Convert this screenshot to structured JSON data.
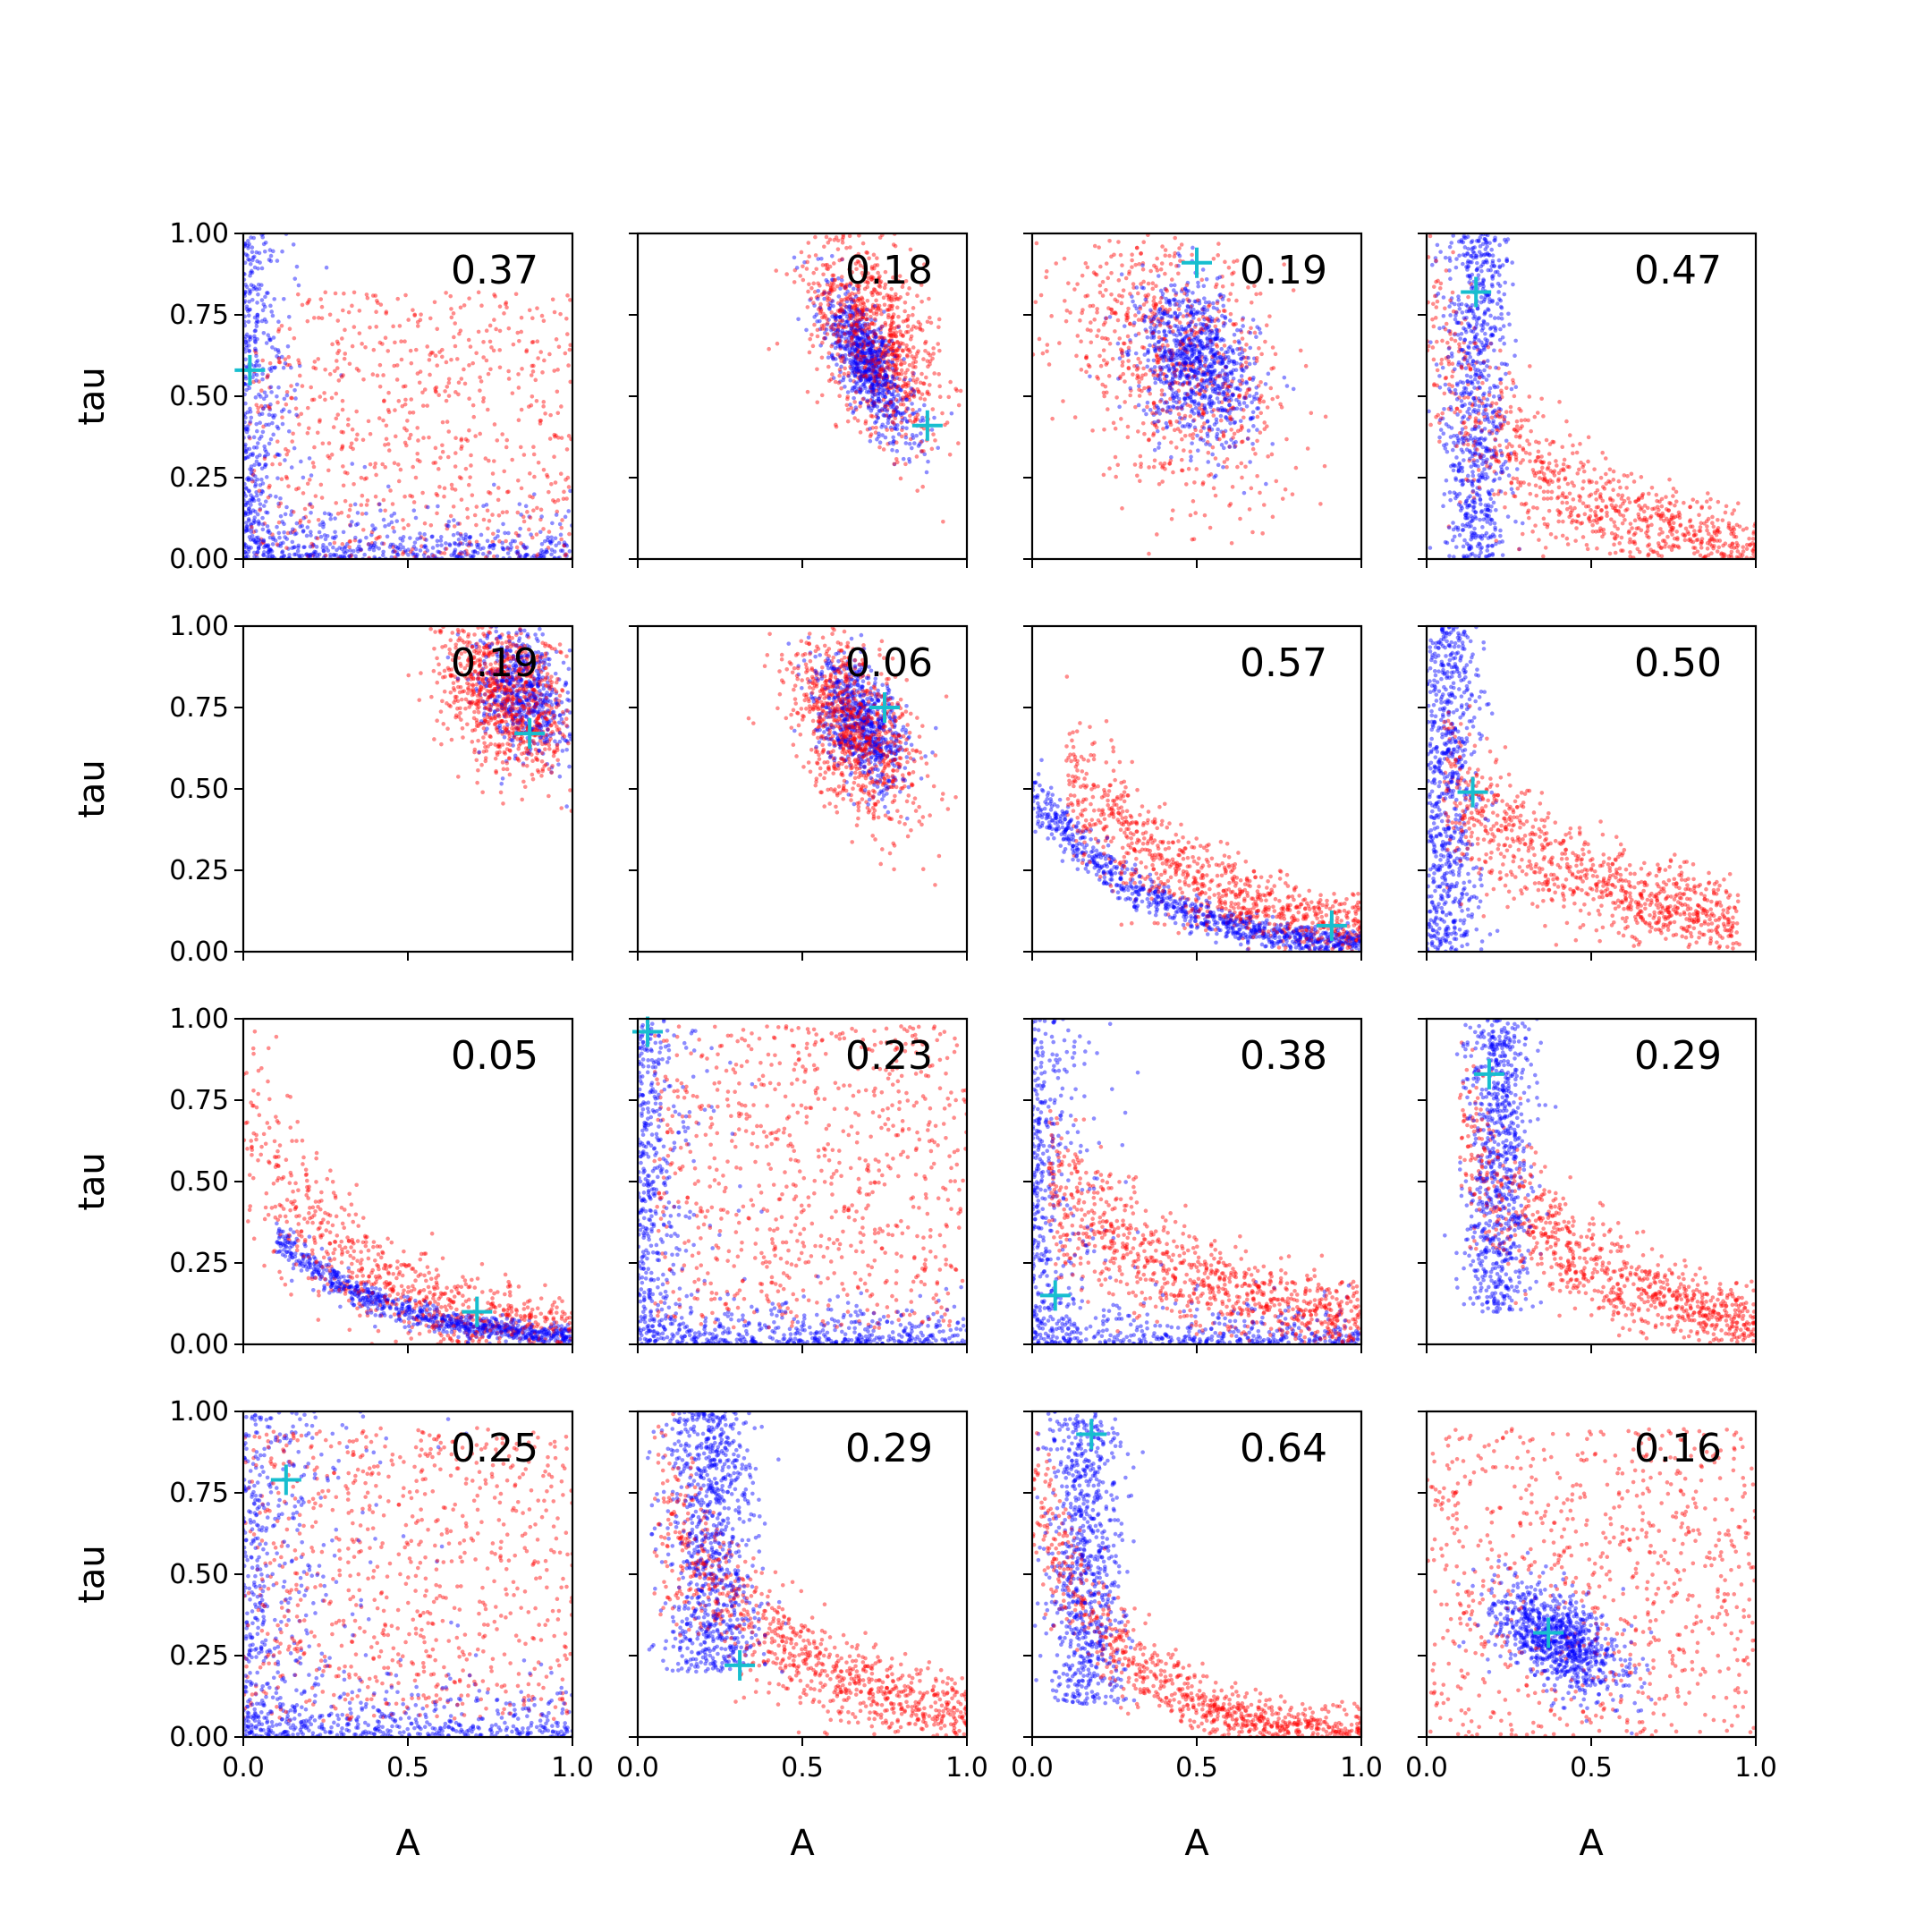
{
  "chart_data": {
    "type": "scatter",
    "layout": {
      "rows": 4,
      "cols": 4
    },
    "xlabel": "A",
    "ylabel": "tau",
    "xlim": [
      0,
      1
    ],
    "ylim": [
      0,
      1
    ],
    "x_ticks": [
      "0.0",
      "0.5",
      "1.0"
    ],
    "y_ticks": [
      "0.00",
      "0.25",
      "0.50",
      "0.75",
      "1.00"
    ],
    "grid": false,
    "colors": {
      "red_series": "#ff0000",
      "blue_series": "#0000ff",
      "truth_marker": "#17becf"
    },
    "panels": [
      {
        "label": "0.37",
        "truth": [
          0.02,
          0.58
        ],
        "red": {
          "shape": "uniform",
          "xmin": 0.02,
          "xmax": 1.0,
          "ymin": 0.0,
          "ymax": 0.82,
          "n": 700
        },
        "blue": {
          "shape": "L",
          "n": 900,
          "xscale": 0.05,
          "yscale": 0.05
        }
      },
      {
        "label": "0.18",
        "truth": [
          0.88,
          0.41
        ],
        "red": {
          "shape": "cluster",
          "center": [
            0.72,
            0.68
          ],
          "sd": [
            0.1,
            0.16
          ],
          "rho": -0.5,
          "n": 900
        },
        "blue": {
          "shape": "cluster",
          "center": [
            0.7,
            0.6
          ],
          "sd": [
            0.07,
            0.12
          ],
          "rho": -0.75,
          "n": 800
        }
      },
      {
        "label": "0.19",
        "truth": [
          0.5,
          0.91
        ],
        "red": {
          "shape": "cluster",
          "center": [
            0.42,
            0.62
          ],
          "sd": [
            0.18,
            0.22
          ],
          "rho": -0.4,
          "n": 800
        },
        "blue": {
          "shape": "cluster",
          "center": [
            0.5,
            0.6
          ],
          "sd": [
            0.09,
            0.12
          ],
          "rho": -0.3,
          "n": 900
        }
      },
      {
        "label": "0.47",
        "truth": [
          0.15,
          0.82
        ],
        "red": {
          "shape": "decay",
          "xmin": 0.0,
          "xmax": 1.0,
          "amp": 0.75,
          "k": 3.0,
          "sd": 0.18,
          "n": 900
        },
        "blue": {
          "shape": "column",
          "xcenter": 0.15,
          "xsd": 0.05,
          "ymin": 0.0,
          "ymax": 1.0,
          "n": 800
        }
      },
      {
        "label": "0.19",
        "truth": [
          0.87,
          0.67
        ],
        "red": {
          "shape": "cluster",
          "center": [
            0.8,
            0.78
          ],
          "sd": [
            0.1,
            0.12
          ],
          "rho": -0.3,
          "n": 900
        },
        "blue": {
          "shape": "cluster",
          "center": [
            0.85,
            0.8
          ],
          "sd": [
            0.07,
            0.1
          ],
          "rho": -0.3,
          "n": 600
        }
      },
      {
        "label": "0.06",
        "truth": [
          0.75,
          0.75
        ],
        "red": {
          "shape": "cluster",
          "center": [
            0.66,
            0.68
          ],
          "sd": [
            0.1,
            0.14
          ],
          "rho": -0.5,
          "n": 900
        },
        "blue": {
          "shape": "cluster",
          "center": [
            0.68,
            0.7
          ],
          "sd": [
            0.07,
            0.1
          ],
          "rho": -0.5,
          "n": 700
        }
      },
      {
        "label": "0.57",
        "truth": [
          0.91,
          0.08
        ],
        "red": {
          "shape": "decay",
          "xmin": 0.1,
          "xmax": 1.0,
          "amp": 0.75,
          "k": 2.5,
          "sd": 0.14,
          "n": 900
        },
        "blue": {
          "shape": "decay",
          "xmin": 0.0,
          "xmax": 1.0,
          "amp": 0.5,
          "k": 3.0,
          "sd": 0.06,
          "n": 900
        }
      },
      {
        "label": "0.50",
        "truth": [
          0.14,
          0.49
        ],
        "red": {
          "shape": "decay",
          "xmin": 0.05,
          "xmax": 0.95,
          "amp": 0.6,
          "k": 2.0,
          "sd": 0.15,
          "n": 900
        },
        "blue": {
          "shape": "column",
          "xcenter": 0.06,
          "xsd": 0.05,
          "ymin": 0.0,
          "ymax": 1.0,
          "n": 800
        }
      },
      {
        "label": "0.05",
        "truth": [
          0.71,
          0.1
        ],
        "red": {
          "shape": "decay",
          "xmin": 0.0,
          "xmax": 1.0,
          "amp": 0.7,
          "k": 3.0,
          "sd": 0.16,
          "n": 800
        },
        "blue": {
          "shape": "decay",
          "xmin": 0.1,
          "xmax": 1.0,
          "amp": 0.45,
          "k": 3.0,
          "sd": 0.05,
          "n": 800
        }
      },
      {
        "label": "0.23",
        "truth": [
          0.03,
          0.96
        ],
        "red": {
          "shape": "uniform",
          "xmin": 0.05,
          "xmax": 1.0,
          "ymin": 0.05,
          "ymax": 0.98,
          "n": 800
        },
        "blue": {
          "shape": "L",
          "n": 900,
          "xscale": 0.06,
          "yscale": 0.04
        }
      },
      {
        "label": "0.38",
        "truth": [
          0.07,
          0.15
        ],
        "red": {
          "shape": "decay",
          "xmin": 0.05,
          "xmax": 1.0,
          "amp": 0.55,
          "k": 2.0,
          "sd": 0.15,
          "n": 900
        },
        "blue": {
          "shape": "L",
          "n": 800,
          "xscale": 0.06,
          "yscale": 0.04
        }
      },
      {
        "label": "0.29",
        "truth": [
          0.19,
          0.83
        ],
        "red": {
          "shape": "decay",
          "xmin": 0.1,
          "xmax": 1.0,
          "amp": 0.85,
          "k": 2.5,
          "sd": 0.14,
          "n": 900
        },
        "blue": {
          "shape": "column",
          "xcenter": 0.22,
          "xsd": 0.05,
          "ymin": 0.1,
          "ymax": 1.0,
          "n": 800
        }
      },
      {
        "label": "0.25",
        "truth": [
          0.13,
          0.79
        ],
        "red": {
          "shape": "uniform",
          "xmin": 0.0,
          "xmax": 1.0,
          "ymin": 0.05,
          "ymax": 0.95,
          "n": 800
        },
        "blue": {
          "shape": "L",
          "n": 900,
          "xscale": 0.12,
          "yscale": 0.05
        }
      },
      {
        "label": "0.29",
        "truth": [
          0.31,
          0.22
        ],
        "red": {
          "shape": "decay",
          "xmin": 0.05,
          "xmax": 1.0,
          "amp": 0.85,
          "k": 2.5,
          "sd": 0.14,
          "n": 900
        },
        "blue": {
          "shape": "column",
          "xcenter": 0.22,
          "xsd": 0.07,
          "ymin": 0.2,
          "ymax": 1.0,
          "n": 900
        }
      },
      {
        "label": "0.64",
        "truth": [
          0.18,
          0.93
        ],
        "red": {
          "shape": "decay",
          "xmin": 0.0,
          "xmax": 1.0,
          "amp": 0.8,
          "k": 4.0,
          "sd": 0.12,
          "n": 900
        },
        "blue": {
          "shape": "column",
          "xcenter": 0.16,
          "xsd": 0.06,
          "ymin": 0.1,
          "ymax": 1.0,
          "n": 800
        }
      },
      {
        "label": "0.16",
        "truth": [
          0.37,
          0.32
        ],
        "red": {
          "shape": "uniform",
          "xmin": 0.0,
          "xmax": 1.0,
          "ymin": 0.0,
          "ymax": 0.95,
          "n": 800
        },
        "blue": {
          "shape": "cluster",
          "center": [
            0.4,
            0.3
          ],
          "sd": [
            0.1,
            0.08
          ],
          "rho": -0.5,
          "n": 900
        }
      }
    ]
  }
}
